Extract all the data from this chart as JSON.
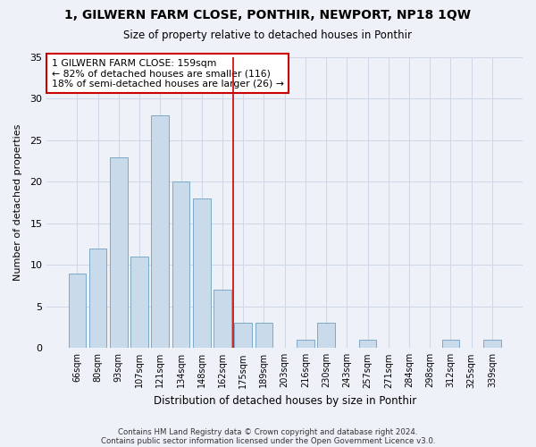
{
  "title": "1, GILWERN FARM CLOSE, PONTHIR, NEWPORT, NP18 1QW",
  "subtitle": "Size of property relative to detached houses in Ponthir",
  "xlabel": "Distribution of detached houses by size in Ponthir",
  "ylabel": "Number of detached properties",
  "categories": [
    "66sqm",
    "80sqm",
    "93sqm",
    "107sqm",
    "121sqm",
    "134sqm",
    "148sqm",
    "162sqm",
    "175sqm",
    "189sqm",
    "203sqm",
    "216sqm",
    "230sqm",
    "243sqm",
    "257sqm",
    "271sqm",
    "284sqm",
    "298sqm",
    "312sqm",
    "325sqm",
    "339sqm"
  ],
  "values": [
    9,
    12,
    23,
    11,
    28,
    20,
    18,
    7,
    3,
    3,
    0,
    1,
    3,
    0,
    1,
    0,
    0,
    0,
    1,
    0,
    1
  ],
  "bar_color": "#c9daea",
  "bar_edge_color": "#7aaac8",
  "grid_color": "#d0d8e8",
  "background_color": "#eef2f8",
  "marker_bin_index": 7,
  "marker_color": "#cc0000",
  "annotation_text": "1 GILWERN FARM CLOSE: 159sqm\n← 82% of detached houses are smaller (116)\n18% of semi-detached houses are larger (26) →",
  "annotation_box_color": "#ffffff",
  "annotation_box_edge": "#cc0000",
  "ylim": [
    0,
    35
  ],
  "yticks": [
    0,
    5,
    10,
    15,
    20,
    25,
    30,
    35
  ],
  "footer1": "Contains HM Land Registry data © Crown copyright and database right 2024.",
  "footer2": "Contains public sector information licensed under the Open Government Licence v3.0."
}
